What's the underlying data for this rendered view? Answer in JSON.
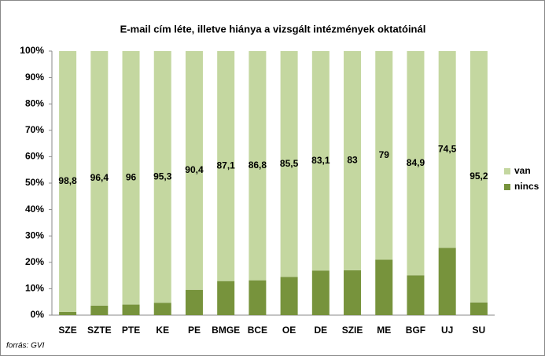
{
  "chart_data": {
    "type": "stacked_bar_100",
    "title": "E-mail cím léte, illetve hiánya a vizsgált intézmények oktatóinál",
    "source": "forrás: GVI",
    "categories": [
      "SZE",
      "SZTE",
      "PTE",
      "KE",
      "PE",
      "BMGE",
      "BCE",
      "OE",
      "DE",
      "SZIE",
      "ME",
      "BGF",
      "UJ",
      "SU"
    ],
    "series": [
      {
        "name": "van",
        "color": "#c4d7a0",
        "values": [
          98.8,
          96.4,
          96,
          95.3,
          90.4,
          87.1,
          86.8,
          85.5,
          83.1,
          83,
          79,
          84.9,
          74.5,
          95.2
        ],
        "value_labels": [
          "98,8",
          "96,4",
          "96",
          "95,3",
          "90,4",
          "87,1",
          "86,8",
          "85,5",
          "83,1",
          "83",
          "79",
          "84,9",
          "74,5",
          "95,2"
        ]
      },
      {
        "name": "nincs",
        "color": "#77933c",
        "values": [
          1.2,
          3.6,
          4,
          4.7,
          9.6,
          12.9,
          13.2,
          14.5,
          16.9,
          17,
          21,
          15.1,
          25.5,
          4.8
        ]
      }
    ],
    "ylim": [
      0,
      100
    ],
    "yticks": [
      {
        "value": 0,
        "label": "0%"
      },
      {
        "value": 10,
        "label": "10%"
      },
      {
        "value": 20,
        "label": "20%"
      },
      {
        "value": 30,
        "label": "30%"
      },
      {
        "value": 40,
        "label": "40%"
      },
      {
        "value": 50,
        "label": "50%"
      },
      {
        "value": 60,
        "label": "60%"
      },
      {
        "value": 70,
        "label": "70%"
      },
      {
        "value": 80,
        "label": "80%"
      },
      {
        "value": 90,
        "label": "90%"
      },
      {
        "value": 100,
        "label": "100%"
      }
    ],
    "legend": "right"
  }
}
